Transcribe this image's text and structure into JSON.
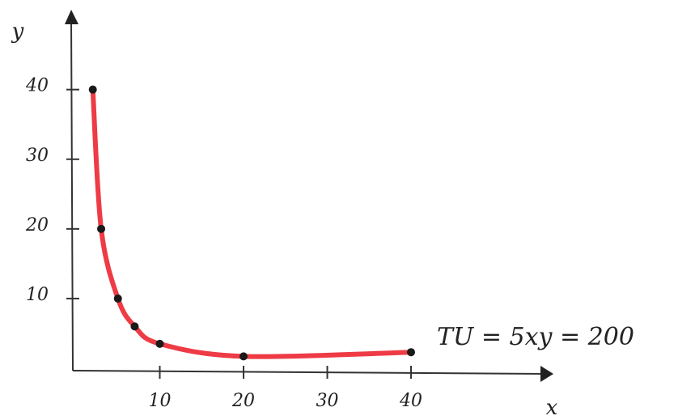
{
  "chart_data": {
    "type": "line",
    "x_label": "x",
    "y_label": "y",
    "annotation": "TU = 5xy = 200",
    "x": [
      2,
      3,
      5,
      7,
      10,
      20,
      40
    ],
    "series": [
      {
        "color": "#ee3b45",
        "marker_color": "#1a1a1a",
        "values": [
          40,
          20,
          10,
          6,
          3.5,
          1.7,
          2.3
        ]
      }
    ],
    "xlim": [
      0,
      57
    ],
    "ylim": [
      0,
      51
    ],
    "xticks": [
      10,
      20,
      30,
      40
    ],
    "yticks": [
      10,
      20,
      30,
      40
    ]
  }
}
